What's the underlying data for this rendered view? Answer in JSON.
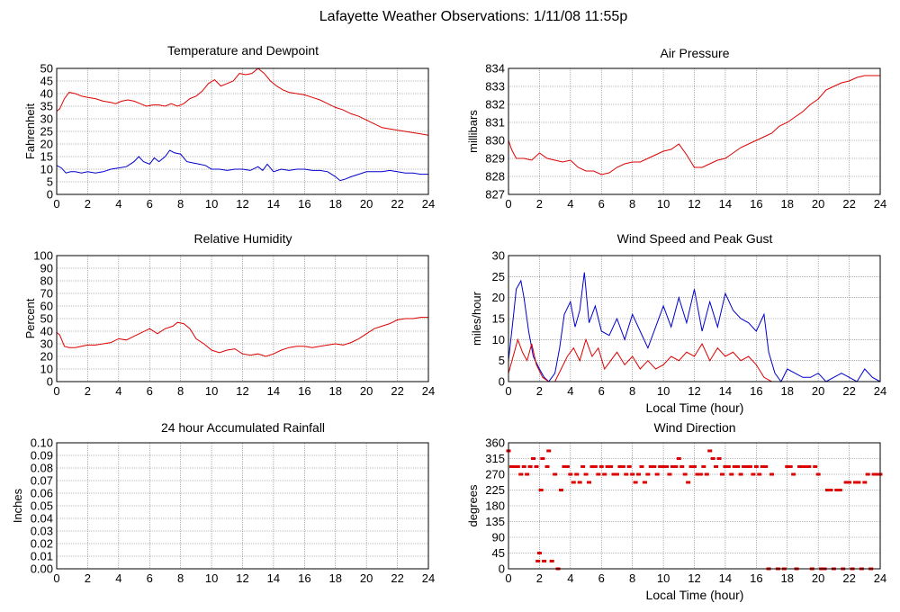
{
  "page": {
    "title": "Lafayette Weather Observations: 1/11/08 11:55p"
  },
  "chart_data": [
    {
      "id": "temp",
      "type": "line",
      "title": "Temperature and Dewpoint",
      "xlabel": "",
      "ylabel": "Fahrenheit",
      "xlim": [
        0,
        24
      ],
      "ylim": [
        0,
        50
      ],
      "xticks": [
        0,
        2,
        4,
        6,
        8,
        10,
        12,
        14,
        16,
        18,
        20,
        22,
        24
      ],
      "yticks": [
        0,
        5,
        10,
        15,
        20,
        25,
        30,
        35,
        40,
        45,
        50
      ],
      "grid": true,
      "series": [
        {
          "color": "#dd0000",
          "x": [
            0,
            0.2,
            0.5,
            0.8,
            1.2,
            1.6,
            2,
            2.5,
            3,
            3.5,
            3.8,
            4.2,
            4.6,
            5,
            5.4,
            5.8,
            6.2,
            6.6,
            7,
            7.4,
            7.8,
            8.2,
            8.6,
            9,
            9.4,
            9.8,
            10.2,
            10.6,
            11,
            11.4,
            11.8,
            12.2,
            12.6,
            13,
            13.4,
            13.8,
            14.2,
            14.6,
            15,
            15.5,
            16,
            16.5,
            17,
            17.5,
            18,
            18.5,
            19,
            19.5,
            20,
            20.5,
            21,
            21.5,
            22,
            22.5,
            23,
            23.5,
            24
          ],
          "y": [
            33,
            34,
            38,
            40.5,
            40,
            39,
            38.5,
            38,
            37,
            36.5,
            36,
            37,
            37.5,
            37,
            36,
            35,
            35.5,
            35.5,
            35,
            36,
            35,
            36,
            38,
            39,
            41,
            44,
            45.5,
            43,
            44,
            45,
            48,
            47.5,
            48,
            50,
            48,
            45,
            43,
            41.5,
            40.5,
            40,
            39.5,
            38.5,
            37.5,
            36,
            34.5,
            33.5,
            32,
            31,
            29.5,
            28,
            26.5,
            26,
            25.5,
            25,
            24.5,
            24,
            23.5
          ]
        },
        {
          "color": "#0000cc",
          "x": [
            0,
            0.3,
            0.6,
            0.9,
            1.2,
            1.6,
            2,
            2.5,
            3,
            3.5,
            4,
            4.5,
            5,
            5.3,
            5.6,
            6,
            6.3,
            6.6,
            7,
            7.3,
            7.6,
            8,
            8.4,
            8.8,
            9.2,
            9.6,
            10,
            10.5,
            11,
            11.5,
            12,
            12.5,
            13,
            13.3,
            13.6,
            14,
            14.5,
            15,
            15.5,
            16,
            16.5,
            17,
            17.5,
            18,
            18.3,
            18.6,
            19,
            19.5,
            20,
            20.5,
            21,
            21.5,
            22,
            22.5,
            23,
            23.5,
            24
          ],
          "y": [
            11.5,
            10.5,
            8.5,
            9,
            9,
            8.5,
            9,
            8.5,
            9,
            10,
            10.5,
            11,
            13,
            15,
            13,
            12,
            14.5,
            13,
            15,
            17.5,
            16.5,
            16,
            13,
            12.5,
            12,
            11.5,
            10,
            10,
            9.5,
            10,
            10,
            9.5,
            11,
            9.5,
            12,
            9,
            10,
            9.5,
            10,
            10,
            9.5,
            9.5,
            9,
            7,
            5.5,
            6,
            7,
            8,
            9,
            9,
            9,
            9.5,
            9,
            8.5,
            8.5,
            8,
            8
          ]
        }
      ]
    },
    {
      "id": "pres",
      "type": "line",
      "title": "Air Pressure",
      "xlabel": "",
      "ylabel": "millibars",
      "xlim": [
        0,
        24
      ],
      "ylim": [
        827,
        834
      ],
      "xticks": [
        0,
        2,
        4,
        6,
        8,
        10,
        12,
        14,
        16,
        18,
        20,
        22,
        24
      ],
      "yticks": [
        827,
        828,
        829,
        830,
        831,
        832,
        833,
        834
      ],
      "grid": true,
      "series": [
        {
          "color": "#dd0000",
          "x": [
            0,
            0.2,
            0.5,
            1,
            1.5,
            2,
            2.5,
            3,
            3.5,
            4,
            4.5,
            5,
            5.5,
            6,
            6.5,
            7,
            7.5,
            8,
            8.5,
            9,
            9.5,
            10,
            10.5,
            11,
            11.5,
            12,
            12.5,
            13,
            13.5,
            14,
            14.5,
            15,
            15.5,
            16,
            16.5,
            17,
            17.5,
            18,
            18.5,
            19,
            19.5,
            20,
            20.5,
            21,
            21.5,
            22,
            22.5,
            23,
            23.5,
            24
          ],
          "y": [
            830,
            829.5,
            829,
            829,
            828.9,
            829.3,
            829,
            828.9,
            828.8,
            828.9,
            828.5,
            828.3,
            828.3,
            828.1,
            828.2,
            828.5,
            828.7,
            828.8,
            828.8,
            829,
            829.2,
            829.4,
            829.5,
            829.8,
            829.2,
            828.5,
            828.5,
            828.7,
            828.9,
            829,
            829.3,
            829.6,
            829.8,
            830,
            830.2,
            830.4,
            830.8,
            831,
            831.3,
            831.6,
            832,
            832.3,
            832.8,
            833,
            833.2,
            833.3,
            833.5,
            833.6,
            833.6,
            833.6
          ]
        }
      ]
    },
    {
      "id": "rh",
      "type": "line",
      "title": "Relative Humidity",
      "xlabel": "",
      "ylabel": "Percent",
      "xlim": [
        0,
        24
      ],
      "ylim": [
        0,
        100
      ],
      "xticks": [
        0,
        2,
        4,
        6,
        8,
        10,
        12,
        14,
        16,
        18,
        20,
        22,
        24
      ],
      "yticks": [
        0,
        10,
        20,
        30,
        40,
        50,
        60,
        70,
        80,
        90,
        100
      ],
      "grid": true,
      "series": [
        {
          "color": "#dd0000",
          "x": [
            0,
            0.2,
            0.5,
            0.8,
            1.2,
            1.6,
            2,
            2.5,
            3,
            3.5,
            4,
            4.5,
            5,
            5.5,
            6,
            6.5,
            7,
            7.5,
            7.8,
            8.2,
            8.6,
            9,
            9.5,
            10,
            10.5,
            11,
            11.5,
            12,
            12.5,
            13,
            13.5,
            14,
            14.5,
            15,
            15.5,
            16,
            16.5,
            17,
            17.5,
            18,
            18.5,
            19,
            19.5,
            20,
            20.5,
            21,
            21.5,
            22,
            22.5,
            23,
            23.5,
            24
          ],
          "y": [
            39,
            37,
            28,
            27,
            27,
            28,
            29,
            29,
            30,
            31,
            34,
            33,
            36,
            39,
            42,
            38,
            42,
            44,
            47,
            46,
            42,
            34,
            30,
            25,
            23,
            25,
            26,
            22,
            21,
            22,
            20,
            22,
            25,
            27,
            28,
            28,
            27,
            28,
            29,
            30,
            29,
            31,
            34,
            38,
            42,
            44,
            46,
            49,
            50,
            50,
            51,
            51
          ]
        }
      ]
    },
    {
      "id": "wind",
      "type": "line",
      "title": "Wind Speed and Peak Gust",
      "xlabel": "Local Time (hour)",
      "ylabel": "miles/hour",
      "xlim": [
        0,
        24
      ],
      "ylim": [
        0,
        30
      ],
      "xticks": [
        0,
        2,
        4,
        6,
        8,
        10,
        12,
        14,
        16,
        18,
        20,
        22,
        24
      ],
      "yticks": [
        0,
        5,
        10,
        15,
        20,
        25,
        30
      ],
      "grid": true,
      "series": [
        {
          "color": "#0000cc",
          "x": [
            0,
            0.3,
            0.5,
            0.8,
            1,
            1.3,
            1.6,
            2,
            2.3,
            2.6,
            3,
            3.3,
            3.6,
            4,
            4.3,
            4.6,
            4.9,
            5.2,
            5.6,
            6,
            6.5,
            7,
            7.5,
            8,
            8.5,
            9,
            9.5,
            10,
            10.5,
            11,
            11.5,
            12,
            12.5,
            13,
            13.5,
            14,
            14.5,
            15,
            15.5,
            16,
            16.5,
            16.8,
            17.2,
            17.6,
            18,
            18.5,
            19,
            19.5,
            20,
            20.5,
            21,
            21.5,
            22,
            22.5,
            23,
            23.5,
            24
          ],
          "y": [
            5,
            15,
            22,
            24,
            20,
            12,
            6,
            3,
            1,
            0,
            2,
            8,
            16,
            19,
            13,
            17,
            26,
            14,
            18,
            12,
            11,
            15,
            10,
            16,
            12,
            8,
            13,
            18,
            13,
            20,
            14,
            22,
            12,
            19,
            13,
            21,
            17,
            15,
            14,
            12,
            16,
            7,
            2,
            0,
            3,
            2,
            1,
            1,
            2,
            0,
            1,
            2,
            1,
            0,
            3,
            1,
            0
          ]
        },
        {
          "color": "#dd0000",
          "x": [
            0,
            0.3,
            0.6,
            0.9,
            1.2,
            1.5,
            1.8,
            2.2,
            2.6,
            3,
            3.4,
            3.8,
            4.2,
            4.6,
            5,
            5.4,
            5.8,
            6.2,
            6.6,
            7,
            7.5,
            8,
            8.5,
            9,
            9.5,
            10,
            10.5,
            11,
            11.5,
            12,
            12.5,
            13,
            13.5,
            14,
            14.5,
            15,
            15.5,
            16,
            16.5,
            17,
            17.5,
            18,
            18.5,
            19,
            19.5,
            20,
            20.5,
            21,
            21.5,
            22,
            22.5,
            23,
            23.5,
            24
          ],
          "y": [
            2,
            6,
            10,
            7,
            5,
            9,
            4,
            1,
            0,
            0,
            3,
            6,
            8,
            5,
            10,
            6,
            8,
            3,
            5,
            7,
            4,
            6,
            3,
            5,
            3,
            4,
            6,
            5,
            7,
            6,
            9,
            5,
            8,
            6,
            7,
            5,
            6,
            4,
            1,
            0,
            0,
            0,
            0,
            0,
            0,
            0,
            0,
            0,
            0,
            0,
            0,
            0,
            0,
            0
          ]
        }
      ]
    },
    {
      "id": "rain",
      "type": "line",
      "title": "24 hour Accumulated Rainfall",
      "xlabel": "",
      "ylabel": "Inches",
      "xlim": [
        0,
        24
      ],
      "ylim": [
        0,
        0.1
      ],
      "xticks": [
        0,
        2,
        4,
        6,
        8,
        10,
        12,
        14,
        16,
        18,
        20,
        22,
        24
      ],
      "yticks": [
        "0.00",
        "0.01",
        "0.02",
        "0.03",
        "0.04",
        "0.05",
        "0.06",
        "0.07",
        "0.08",
        "0.09",
        "0.10"
      ],
      "grid": true,
      "series": [
        {
          "color": "#dd0000",
          "x": [
            0,
            24
          ],
          "y": [
            0,
            0
          ]
        }
      ]
    },
    {
      "id": "dir",
      "type": "scatter",
      "title": "Wind Direction",
      "xlabel": "Local Time (hour)",
      "ylabel": "degrees",
      "xlim": [
        0,
        24
      ],
      "ylim": [
        0,
        360
      ],
      "xticks": [
        0,
        2,
        4,
        6,
        8,
        10,
        12,
        14,
        16,
        18,
        20,
        22,
        24
      ],
      "yticks": [
        0,
        45,
        90,
        135,
        180,
        225,
        270,
        315,
        360
      ],
      "grid": true,
      "series": [
        {
          "color": "#dd0000",
          "x": [
            0,
            0.2,
            0.4,
            0.6,
            0.8,
            1,
            1.2,
            1.4,
            1.6,
            1.8,
            1.9,
            2,
            2.1,
            2.2,
            2.3,
            2.5,
            2.6,
            2.8,
            3,
            3.2,
            3.4,
            3.6,
            3.8,
            4,
            4.2,
            4.4,
            4.6,
            4.8,
            5,
            5.2,
            5.4,
            5.6,
            5.8,
            6,
            6.2,
            6.4,
            6.6,
            6.8,
            7,
            7.2,
            7.4,
            7.6,
            7.8,
            8,
            8.2,
            8.4,
            8.6,
            8.8,
            9,
            9.2,
            9.4,
            9.6,
            9.8,
            10,
            10.2,
            10.4,
            10.6,
            10.8,
            11,
            11.2,
            11.4,
            11.6,
            11.8,
            12,
            12.2,
            12.4,
            12.6,
            12.8,
            13,
            13.2,
            13.4,
            13.6,
            13.8,
            14,
            14.2,
            14.4,
            14.6,
            14.8,
            15,
            15.2,
            15.4,
            15.6,
            15.8,
            16,
            16.2,
            16.4,
            16.6,
            16.8,
            17,
            17.4,
            17.8,
            18,
            18.2,
            18.4,
            18.6,
            18.8,
            19,
            19.2,
            19.4,
            19.6,
            19.8,
            20,
            20.2,
            20.4,
            20.6,
            20.8,
            21,
            21.2,
            21.4,
            21.6,
            21.8,
            22,
            22.2,
            22.4,
            22.6,
            22.8,
            23,
            23.2,
            23.4,
            23.6,
            23.8,
            24
          ],
          "y": [
            337,
            292,
            292,
            292,
            270,
            292,
            270,
            292,
            315,
            292,
            22,
            45,
            225,
            315,
            22,
            292,
            337,
            22,
            270,
            0,
            225,
            292,
            292,
            270,
            247,
            270,
            247,
            292,
            270,
            247,
            292,
            292,
            270,
            292,
            270,
            292,
            292,
            270,
            270,
            292,
            292,
            270,
            292,
            270,
            247,
            270,
            292,
            247,
            270,
            292,
            292,
            270,
            292,
            292,
            292,
            270,
            292,
            292,
            315,
            292,
            270,
            247,
            292,
            292,
            270,
            270,
            292,
            270,
            337,
            315,
            292,
            315,
            270,
            292,
            292,
            270,
            292,
            292,
            270,
            292,
            292,
            292,
            270,
            292,
            270,
            292,
            292,
            0,
            270,
            0,
            0,
            292,
            292,
            270,
            0,
            292,
            292,
            292,
            292,
            0,
            292,
            270,
            0,
            0,
            225,
            225,
            0,
            225,
            225,
            0,
            247,
            247,
            0,
            247,
            247,
            0,
            247,
            270,
            0,
            270,
            270,
            270
          ]
        }
      ]
    }
  ]
}
